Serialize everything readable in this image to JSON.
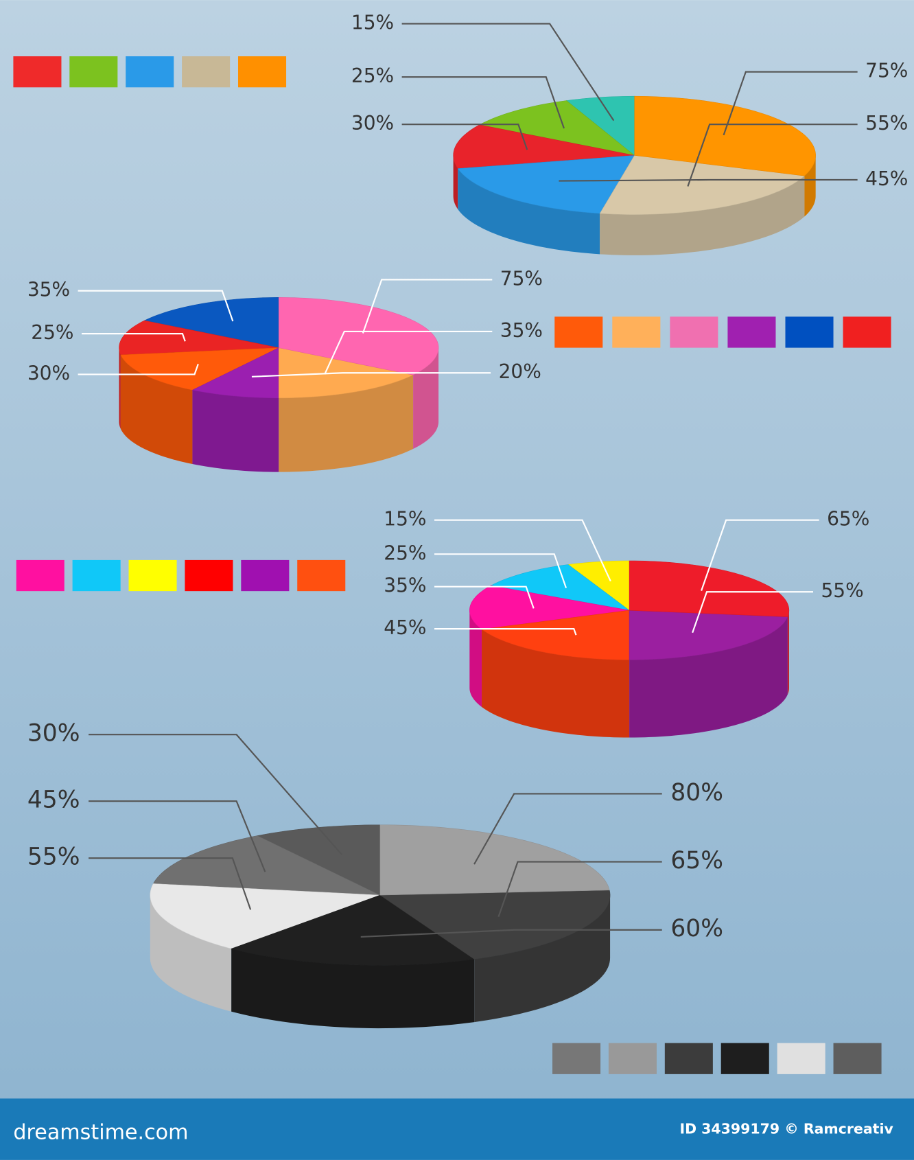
{
  "chart_data": [
    {
      "type": "pie",
      "values": [
        15,
        25,
        30,
        45,
        55,
        75
      ],
      "value_labels": [
        "15%",
        "25%",
        "30%",
        "45%",
        "55%",
        "75%"
      ],
      "colors": [
        "#2ec4b0",
        "#7cc21f",
        "#e8232b",
        "#2a9ae8",
        "#d8c8a8",
        "#ff9500"
      ],
      "legend_colors": [
        "#ef2a2a",
        "#7cc21f",
        "#2a9ae8",
        "#c8b896",
        "#ff9000"
      ]
    },
    {
      "type": "pie",
      "values": [
        35,
        25,
        30,
        20,
        35,
        75
      ],
      "value_labels": [
        "35%",
        "25%",
        "30%",
        "20%",
        "35%",
        "75%"
      ],
      "colors": [
        "#0a58c0",
        "#ea2424",
        "#ff5a0a",
        "#9b1fb0",
        "#ffaa50",
        "#ff66b0"
      ],
      "legend_colors": [
        "#ff5a0a",
        "#ffb05a",
        "#f070b0",
        "#a020b0",
        "#0050c0",
        "#f02020"
      ]
    },
    {
      "type": "pie",
      "values": [
        15,
        25,
        35,
        45,
        55,
        65
      ],
      "value_labels": [
        "15%",
        "25%",
        "35%",
        "45%",
        "55%",
        "65%"
      ],
      "colors": [
        "#ffee00",
        "#10c8f8",
        "#ff10a0",
        "#ff4010",
        "#9b1fa0",
        "#ee1c2a"
      ],
      "legend_colors": [
        "#ff10a0",
        "#10c8f8",
        "#ffff00",
        "#ff0000",
        "#a010b0",
        "#ff5010"
      ]
    },
    {
      "type": "pie",
      "values": [
        30,
        45,
        55,
        60,
        65,
        80
      ],
      "value_labels": [
        "30%",
        "45%",
        "55%",
        "60%",
        "65%",
        "80%"
      ],
      "colors": [
        "#5a5a5a",
        "#707070",
        "#e8e8e8",
        "#202020",
        "#404040",
        "#a0a0a0"
      ],
      "legend_colors": [
        "#777777",
        "#999999",
        "#3c3c3c",
        "#1e1e1e",
        "#e0e0e0",
        "#5e5e5e"
      ]
    }
  ],
  "footer": {
    "site": "dreamstime.com",
    "credit": "ID 34399179 © Ramcreativ"
  }
}
